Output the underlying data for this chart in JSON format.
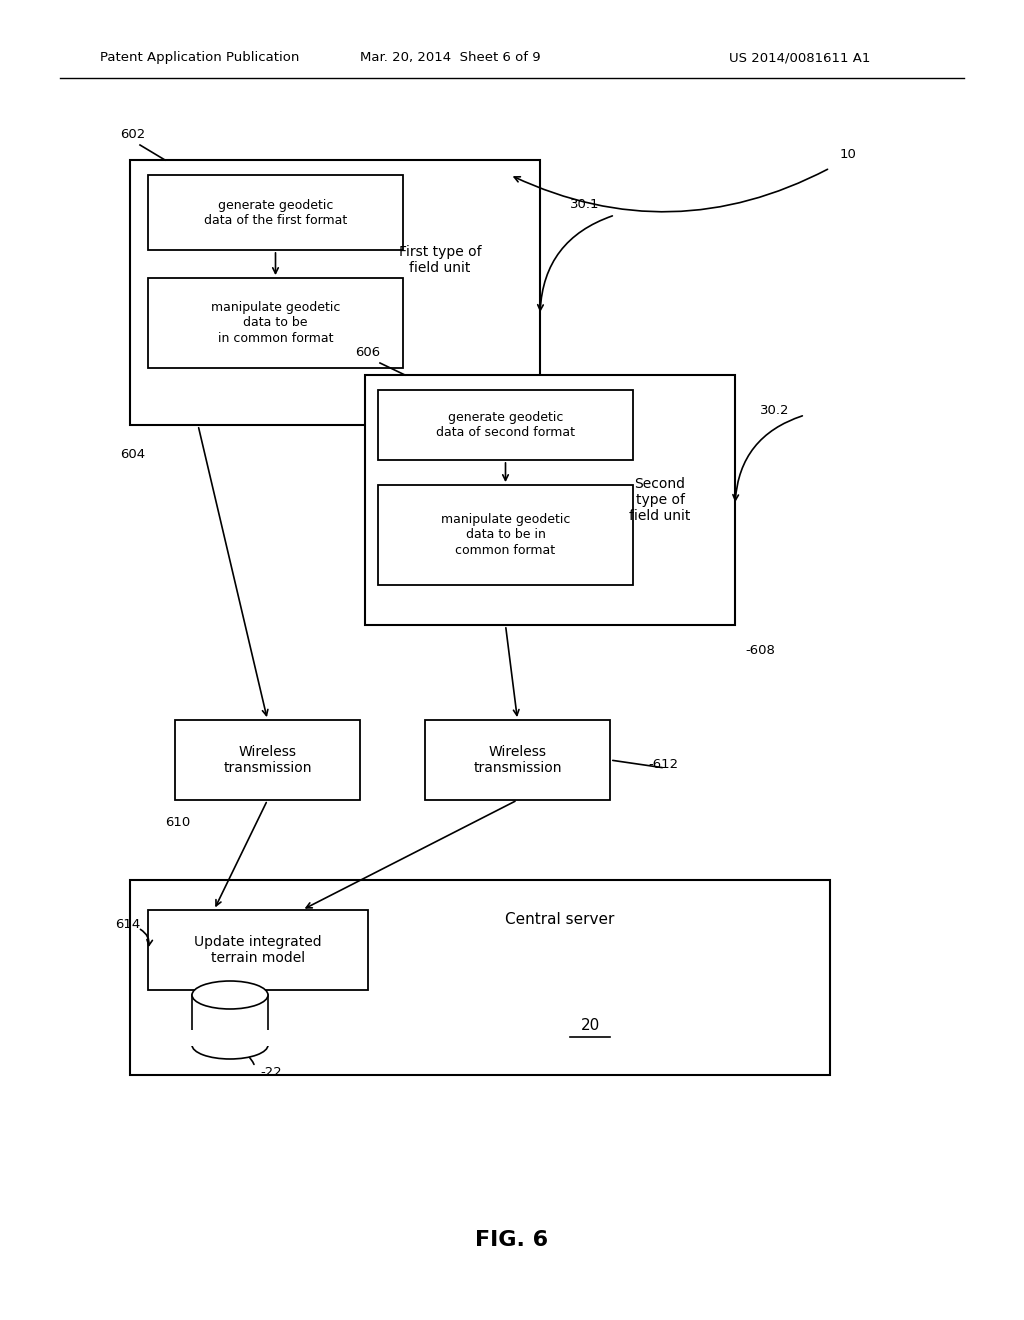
{
  "bg_color": "#ffffff",
  "header_left": "Patent Application Publication",
  "header_mid": "Mar. 20, 2014  Sheet 6 of 9",
  "header_right": "US 2014/0081611 A1",
  "fig_label": "FIG. 6",
  "label_10": "10",
  "label_20": "20",
  "label_22": "-22",
  "label_30_1": "30.1",
  "label_30_2": "30.2",
  "label_602": "602",
  "label_604": "604",
  "label_606": "606",
  "label_608": "-608",
  "label_610": "610",
  "label_612": "-612",
  "label_614": "614",
  "box1_outer_text": "First type of\nfield unit",
  "box1_inner1_text": "generate geodetic\ndata of the first format",
  "box1_inner2_text": "manipulate geodetic\ndata to be\nin common format",
  "box2_outer_text": "Second\ntype of\nfield unit",
  "box2_inner1_text": "generate geodetic\ndata of second format",
  "box2_inner2_text": "manipulate geodetic\ndata to be in\ncommon format",
  "wt1_text": "Wireless\ntransmission",
  "wt2_text": "Wireless\ntransmission",
  "server_text": "Central server",
  "server_inner_text": "Update integrated\nterrain model",
  "server_label": "20"
}
